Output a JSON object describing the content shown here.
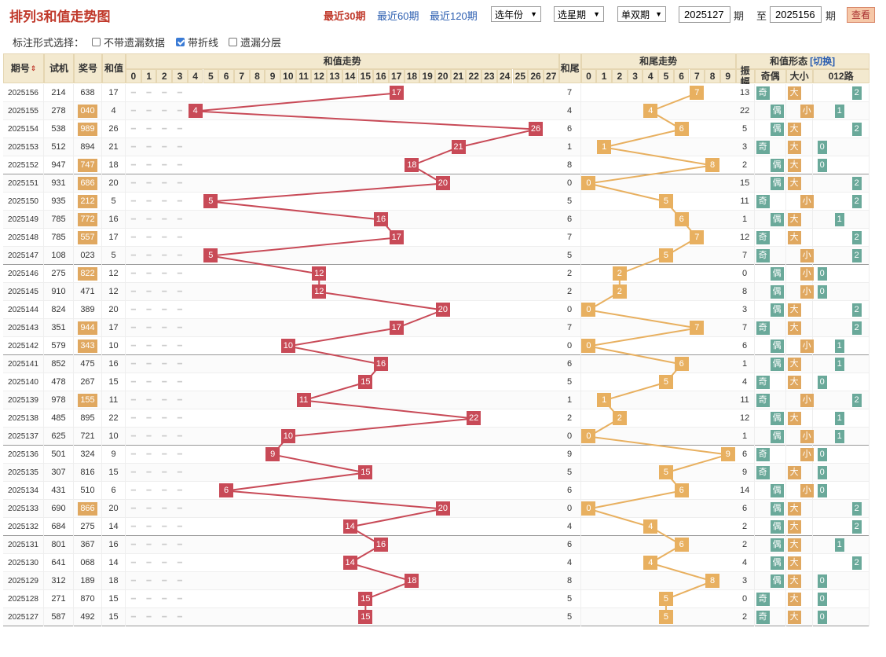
{
  "title": "排列3和值走势图",
  "period_links": [
    "最近30期",
    "最近60期",
    "最近120期"
  ],
  "selects": [
    "选年份",
    "选星期",
    "单双期"
  ],
  "range": {
    "from": "2025127",
    "to": "2025156",
    "label_qi": "期",
    "label_zhi": "至"
  },
  "query_label": "查看",
  "options": {
    "title": "标注形式选择：",
    "items": [
      {
        "label": "不带遗漏数据",
        "checked": false
      },
      {
        "label": "带折线",
        "checked": true
      },
      {
        "label": "遗漏分层",
        "checked": false
      }
    ]
  },
  "headers": {
    "issue": "期号",
    "trial": "试机",
    "prize": "奖号",
    "sum": "和值",
    "sum_trend": "和值走势",
    "tail": "和尾",
    "tail_trend": "和尾走势",
    "form": "和值形态",
    "switch": "[切换]",
    "amp": "振幅",
    "odd_even": "奇偶",
    "size": "大小",
    "road": "012路"
  },
  "sum_cols": [
    "0",
    "1",
    "2",
    "3",
    "4",
    "5",
    "6",
    "7",
    "8",
    "9",
    "10",
    "11",
    "12",
    "13",
    "14",
    "15",
    "16",
    "17",
    "18",
    "19",
    "20",
    "21",
    "22",
    "23",
    "24",
    "25",
    "26",
    "27"
  ],
  "tail_cols": [
    "0",
    "1",
    "2",
    "3",
    "4",
    "5",
    "6",
    "7",
    "8",
    "9"
  ],
  "colors": {
    "sum": "#c84a57",
    "tail": "#e8b060",
    "prize": "#e0a860",
    "odd": "#6aa99a",
    "even": "#6aa99a",
    "big": "#e0a860",
    "small": "#e0a860",
    "road": "#6aa99a"
  },
  "rows": [
    {
      "issue": "2025156",
      "trial": "214",
      "prize": "638",
      "hl": false,
      "sum": 17,
      "tail": 7,
      "amp": "13",
      "oe": "奇",
      "sz": "大",
      "rd": "2"
    },
    {
      "issue": "2025155",
      "trial": "278",
      "prize": "040",
      "hl": true,
      "sum": 4,
      "tail": 4,
      "amp": "22",
      "oe": "偶",
      "sz": "小",
      "rd": "1"
    },
    {
      "issue": "2025154",
      "trial": "538",
      "prize": "989",
      "hl": true,
      "sum": 26,
      "tail": 6,
      "amp": "5",
      "oe": "偶",
      "sz": "大",
      "rd": "2"
    },
    {
      "issue": "2025153",
      "trial": "512",
      "prize": "894",
      "hl": false,
      "sum": 21,
      "tail": 1,
      "amp": "3",
      "oe": "奇",
      "sz": "大",
      "rd": "0"
    },
    {
      "issue": "2025152",
      "trial": "947",
      "prize": "747",
      "hl": true,
      "sum": 18,
      "tail": 8,
      "amp": "2",
      "oe": "偶",
      "sz": "大",
      "rd": "0"
    },
    {
      "issue": "2025151",
      "trial": "931",
      "prize": "686",
      "hl": true,
      "sum": 20,
      "tail": 0,
      "amp": "15",
      "oe": "偶",
      "sz": "大",
      "rd": "2"
    },
    {
      "issue": "2025150",
      "trial": "935",
      "prize": "212",
      "hl": true,
      "sum": 5,
      "tail": 5,
      "amp": "11",
      "oe": "奇",
      "sz": "小",
      "rd": "2"
    },
    {
      "issue": "2025149",
      "trial": "785",
      "prize": "772",
      "hl": true,
      "sum": 16,
      "tail": 6,
      "amp": "1",
      "oe": "偶",
      "sz": "大",
      "rd": "1"
    },
    {
      "issue": "2025148",
      "trial": "785",
      "prize": "557",
      "hl": true,
      "sum": 17,
      "tail": 7,
      "amp": "12",
      "oe": "奇",
      "sz": "大",
      "rd": "2"
    },
    {
      "issue": "2025147",
      "trial": "108",
      "prize": "023",
      "hl": false,
      "sum": 5,
      "tail": 5,
      "amp": "7",
      "oe": "奇",
      "sz": "小",
      "rd": "2"
    },
    {
      "issue": "2025146",
      "trial": "275",
      "prize": "822",
      "hl": true,
      "sum": 12,
      "tail": 2,
      "amp": "0",
      "oe": "偶",
      "sz": "小",
      "rd": "0"
    },
    {
      "issue": "2025145",
      "trial": "910",
      "prize": "471",
      "hl": false,
      "sum": 12,
      "tail": 2,
      "amp": "8",
      "oe": "偶",
      "sz": "小",
      "rd": "0"
    },
    {
      "issue": "2025144",
      "trial": "824",
      "prize": "389",
      "hl": false,
      "sum": 20,
      "tail": 0,
      "amp": "3",
      "oe": "偶",
      "sz": "大",
      "rd": "2"
    },
    {
      "issue": "2025143",
      "trial": "351",
      "prize": "944",
      "hl": true,
      "sum": 17,
      "tail": 7,
      "amp": "7",
      "oe": "奇",
      "sz": "大",
      "rd": "2"
    },
    {
      "issue": "2025142",
      "trial": "579",
      "prize": "343",
      "hl": true,
      "sum": 10,
      "tail": 0,
      "amp": "6",
      "oe": "偶",
      "sz": "小",
      "rd": "1"
    },
    {
      "issue": "2025141",
      "trial": "852",
      "prize": "475",
      "hl": false,
      "sum": 16,
      "tail": 6,
      "amp": "1",
      "oe": "偶",
      "sz": "大",
      "rd": "1"
    },
    {
      "issue": "2025140",
      "trial": "478",
      "prize": "267",
      "hl": false,
      "sum": 15,
      "tail": 5,
      "amp": "4",
      "oe": "奇",
      "sz": "大",
      "rd": "0"
    },
    {
      "issue": "2025139",
      "trial": "978",
      "prize": "155",
      "hl": true,
      "sum": 11,
      "tail": 1,
      "amp": "11",
      "oe": "奇",
      "sz": "小",
      "rd": "2"
    },
    {
      "issue": "2025138",
      "trial": "485",
      "prize": "895",
      "hl": false,
      "sum": 22,
      "tail": 2,
      "amp": "12",
      "oe": "偶",
      "sz": "大",
      "rd": "1"
    },
    {
      "issue": "2025137",
      "trial": "625",
      "prize": "721",
      "hl": false,
      "sum": 10,
      "tail": 0,
      "amp": "1",
      "oe": "偶",
      "sz": "小",
      "rd": "1"
    },
    {
      "issue": "2025136",
      "trial": "501",
      "prize": "324",
      "hl": false,
      "sum": 9,
      "tail": 9,
      "amp": "6",
      "oe": "奇",
      "sz": "小",
      "rd": "0"
    },
    {
      "issue": "2025135",
      "trial": "307",
      "prize": "816",
      "hl": false,
      "sum": 15,
      "tail": 5,
      "amp": "9",
      "oe": "奇",
      "sz": "大",
      "rd": "0"
    },
    {
      "issue": "2025134",
      "trial": "431",
      "prize": "510",
      "hl": false,
      "sum": 6,
      "tail": 6,
      "amp": "14",
      "oe": "偶",
      "sz": "小",
      "rd": "0"
    },
    {
      "issue": "2025133",
      "trial": "690",
      "prize": "866",
      "hl": true,
      "sum": 20,
      "tail": 0,
      "amp": "6",
      "oe": "偶",
      "sz": "大",
      "rd": "2"
    },
    {
      "issue": "2025132",
      "trial": "684",
      "prize": "275",
      "hl": false,
      "sum": 14,
      "tail": 4,
      "amp": "2",
      "oe": "偶",
      "sz": "大",
      "rd": "2"
    },
    {
      "issue": "2025131",
      "trial": "801",
      "prize": "367",
      "hl": false,
      "sum": 16,
      "tail": 6,
      "amp": "2",
      "oe": "偶",
      "sz": "大",
      "rd": "1"
    },
    {
      "issue": "2025130",
      "trial": "641",
      "prize": "068",
      "hl": false,
      "sum": 14,
      "tail": 4,
      "amp": "4",
      "oe": "偶",
      "sz": "大",
      "rd": "2"
    },
    {
      "issue": "2025129",
      "trial": "312",
      "prize": "189",
      "hl": false,
      "sum": 18,
      "tail": 8,
      "amp": "3",
      "oe": "偶",
      "sz": "大",
      "rd": "0"
    },
    {
      "issue": "2025128",
      "trial": "271",
      "prize": "870",
      "hl": false,
      "sum": 15,
      "tail": 5,
      "amp": "0",
      "oe": "奇",
      "sz": "大",
      "rd": "0"
    },
    {
      "issue": "2025127",
      "trial": "587",
      "prize": "492",
      "hl": false,
      "sum": 15,
      "tail": 5,
      "amp": "2",
      "oe": "奇",
      "sz": "大",
      "rd": "0"
    }
  ]
}
